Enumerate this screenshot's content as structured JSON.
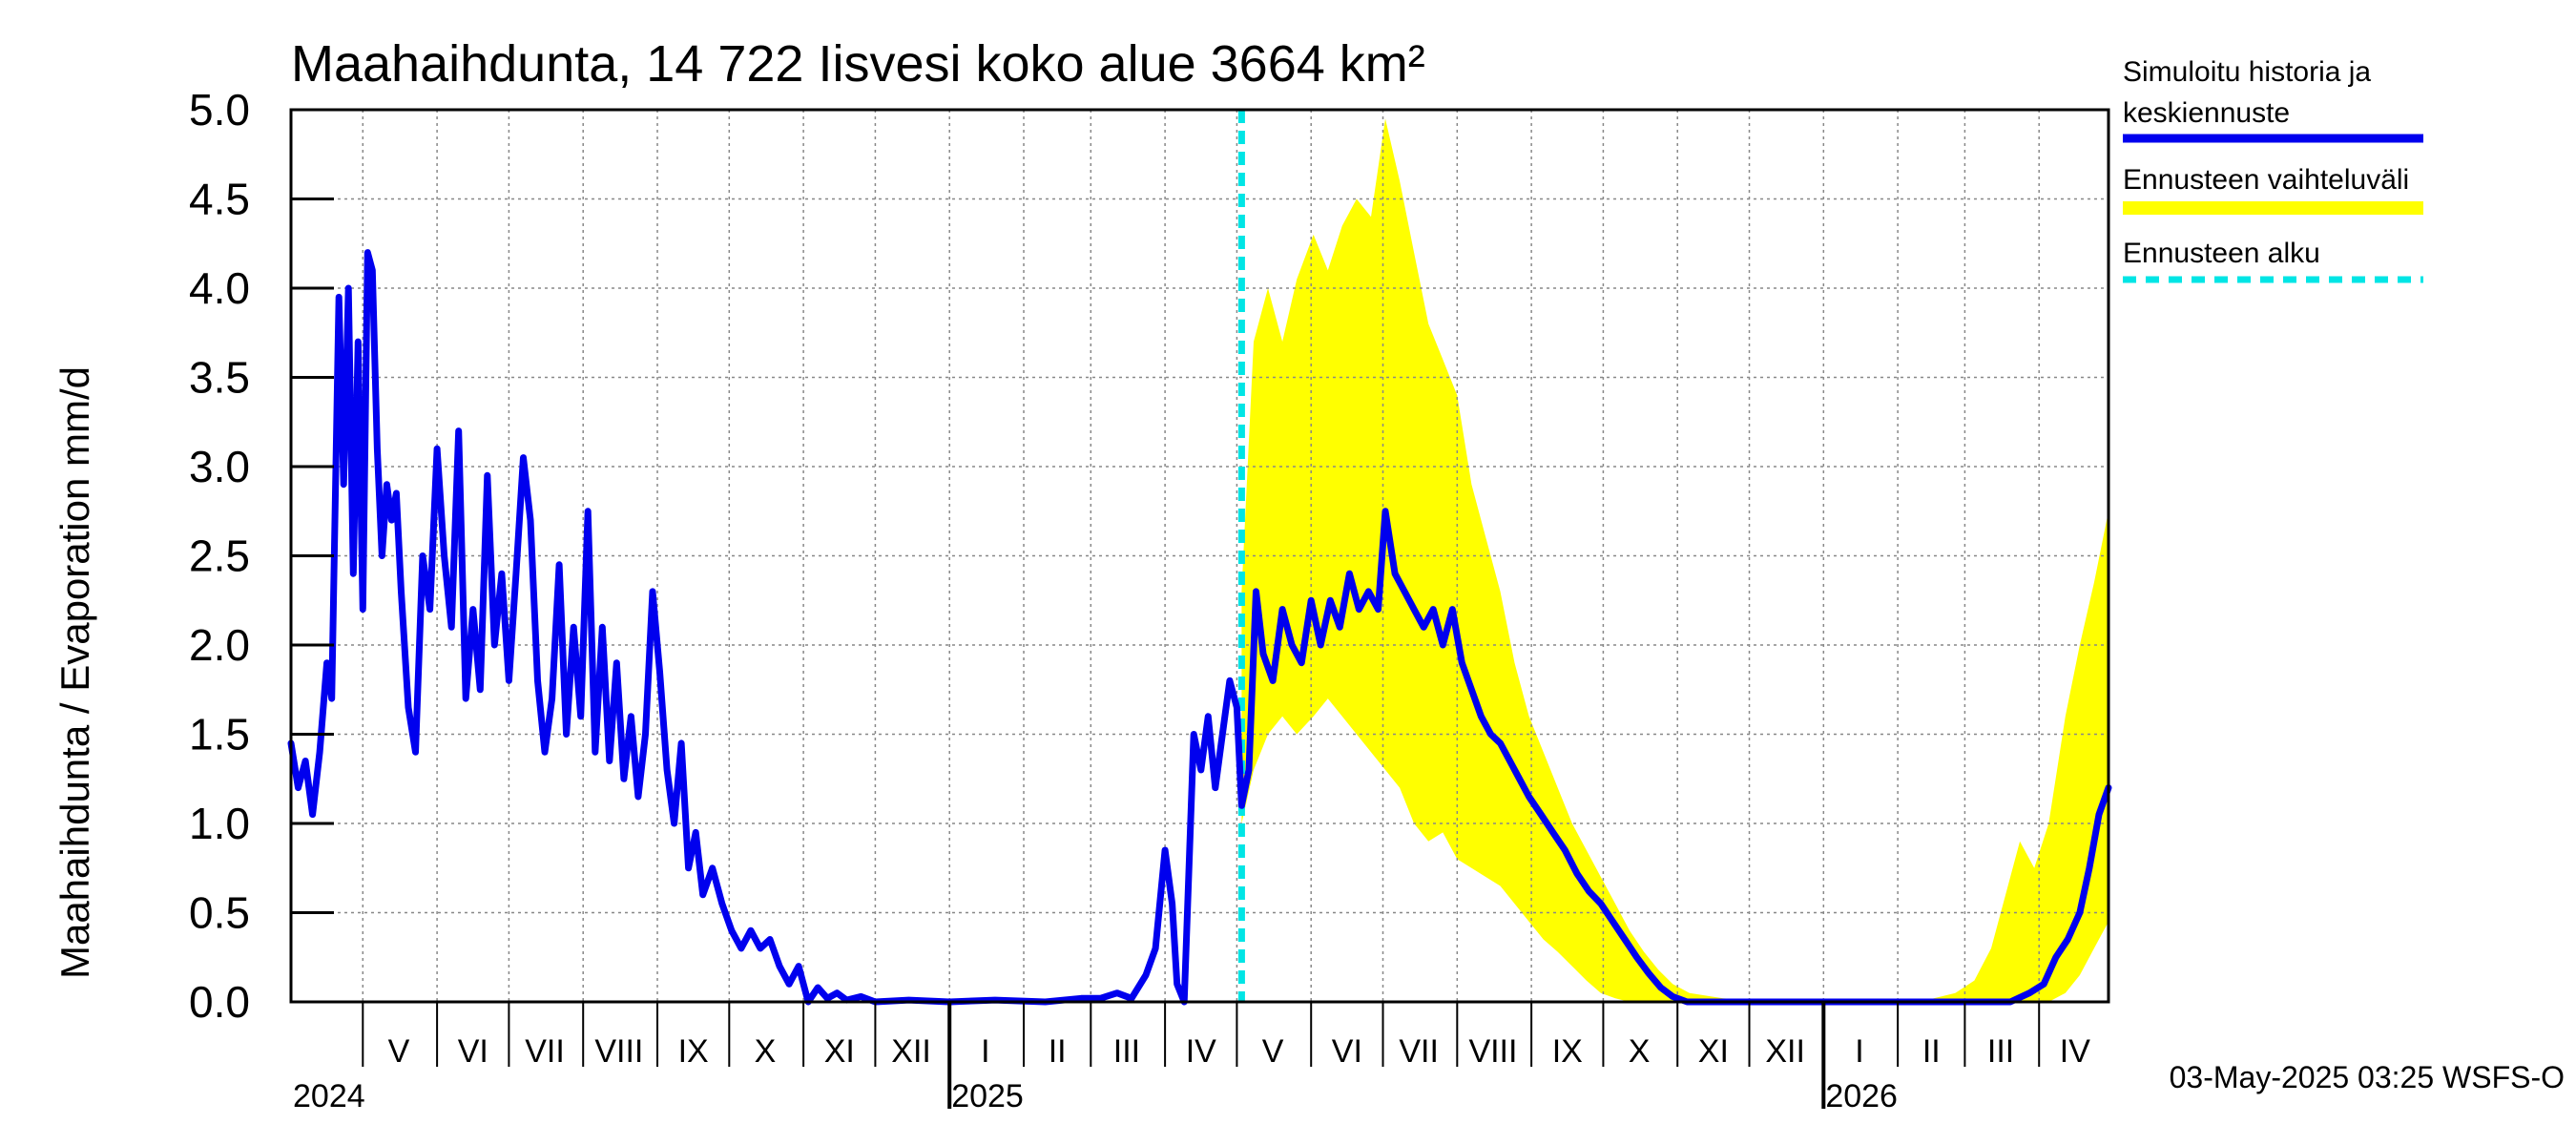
{
  "chart_data": {
    "type": "line",
    "title": "Maahaihdunta, 14 722 Iisvesi koko alue 3664 km²",
    "ylabel": "Maahaihdunta / Evaporation   mm/d",
    "ylim": [
      0,
      5
    ],
    "yticks": [
      "0.0",
      "0.5",
      "1.0",
      "1.5",
      "2.0",
      "2.5",
      "3.0",
      "3.5",
      "4.0",
      "4.5",
      "5.0"
    ],
    "x_start": "2024-04-01",
    "x_end": "2026-04-30",
    "forecast_start": "2025-05-03",
    "month_labels": [
      {
        "label": "V",
        "date": "2024-05-16"
      },
      {
        "label": "VI",
        "date": "2024-06-16"
      },
      {
        "label": "VII",
        "date": "2024-07-16"
      },
      {
        "label": "VIII",
        "date": "2024-08-16"
      },
      {
        "label": "IX",
        "date": "2024-09-16"
      },
      {
        "label": "X",
        "date": "2024-10-16"
      },
      {
        "label": "XI",
        "date": "2024-11-16"
      },
      {
        "label": "XII",
        "date": "2024-12-16"
      },
      {
        "label": "I",
        "date": "2025-01-16"
      },
      {
        "label": "II",
        "date": "2025-02-15"
      },
      {
        "label": "III",
        "date": "2025-03-16"
      },
      {
        "label": "IV",
        "date": "2025-04-16"
      },
      {
        "label": "V",
        "date": "2025-05-16"
      },
      {
        "label": "VI",
        "date": "2025-06-16"
      },
      {
        "label": "VII",
        "date": "2025-07-16"
      },
      {
        "label": "VIII",
        "date": "2025-08-16"
      },
      {
        "label": "IX",
        "date": "2025-09-16"
      },
      {
        "label": "X",
        "date": "2025-10-16"
      },
      {
        "label": "XI",
        "date": "2025-11-16"
      },
      {
        "label": "XII",
        "date": "2025-12-16"
      },
      {
        "label": "I",
        "date": "2026-01-16"
      },
      {
        "label": "II",
        "date": "2026-02-15"
      },
      {
        "label": "III",
        "date": "2026-03-16"
      },
      {
        "label": "IV",
        "date": "2026-04-16"
      }
    ],
    "month_boundaries": [
      "2024-05-01",
      "2024-06-01",
      "2024-07-01",
      "2024-08-01",
      "2024-09-01",
      "2024-10-01",
      "2024-11-01",
      "2024-12-01",
      "2025-01-01",
      "2025-02-01",
      "2025-03-01",
      "2025-04-01",
      "2025-05-01",
      "2025-06-01",
      "2025-07-01",
      "2025-08-01",
      "2025-09-01",
      "2025-10-01",
      "2025-11-01",
      "2025-12-01",
      "2026-01-01",
      "2026-02-01",
      "2026-03-01",
      "2026-04-01"
    ],
    "year_labels": [
      {
        "label": "2024",
        "date": "2024-04-01"
      },
      {
        "label": "2025",
        "date": "2025-01-01"
      },
      {
        "label": "2026",
        "date": "2026-01-01"
      }
    ],
    "series": [
      {
        "name": "Simuloitu historia ja keskiennuste",
        "color": "#0000ee",
        "points": [
          [
            "2024-04-01",
            1.45
          ],
          [
            "2024-04-04",
            1.2
          ],
          [
            "2024-04-07",
            1.35
          ],
          [
            "2024-04-10",
            1.05
          ],
          [
            "2024-04-13",
            1.4
          ],
          [
            "2024-04-16",
            1.9
          ],
          [
            "2024-04-18",
            1.7
          ],
          [
            "2024-04-21",
            3.95
          ],
          [
            "2024-04-23",
            2.9
          ],
          [
            "2024-04-25",
            4.0
          ],
          [
            "2024-04-27",
            2.4
          ],
          [
            "2024-04-29",
            3.7
          ],
          [
            "2024-05-01",
            2.2
          ],
          [
            "2024-05-03",
            4.2
          ],
          [
            "2024-05-05",
            4.1
          ],
          [
            "2024-05-07",
            3.1
          ],
          [
            "2024-05-09",
            2.5
          ],
          [
            "2024-05-11",
            2.9
          ],
          [
            "2024-05-13",
            2.7
          ],
          [
            "2024-05-15",
            2.85
          ],
          [
            "2024-05-17",
            2.3
          ],
          [
            "2024-05-20",
            1.65
          ],
          [
            "2024-05-23",
            1.4
          ],
          [
            "2024-05-26",
            2.5
          ],
          [
            "2024-05-29",
            2.2
          ],
          [
            "2024-06-01",
            3.1
          ],
          [
            "2024-06-04",
            2.5
          ],
          [
            "2024-06-07",
            2.1
          ],
          [
            "2024-06-10",
            3.2
          ],
          [
            "2024-06-13",
            1.7
          ],
          [
            "2024-06-16",
            2.2
          ],
          [
            "2024-06-19",
            1.75
          ],
          [
            "2024-06-22",
            2.95
          ],
          [
            "2024-06-25",
            2.0
          ],
          [
            "2024-06-28",
            2.4
          ],
          [
            "2024-07-01",
            1.8
          ],
          [
            "2024-07-04",
            2.4
          ],
          [
            "2024-07-07",
            3.05
          ],
          [
            "2024-07-10",
            2.7
          ],
          [
            "2024-07-13",
            1.8
          ],
          [
            "2024-07-16",
            1.4
          ],
          [
            "2024-07-19",
            1.7
          ],
          [
            "2024-07-22",
            2.45
          ],
          [
            "2024-07-25",
            1.5
          ],
          [
            "2024-07-28",
            2.1
          ],
          [
            "2024-07-31",
            1.6
          ],
          [
            "2024-08-03",
            2.75
          ],
          [
            "2024-08-06",
            1.4
          ],
          [
            "2024-08-09",
            2.1
          ],
          [
            "2024-08-12",
            1.35
          ],
          [
            "2024-08-15",
            1.9
          ],
          [
            "2024-08-18",
            1.25
          ],
          [
            "2024-08-21",
            1.6
          ],
          [
            "2024-08-24",
            1.15
          ],
          [
            "2024-08-27",
            1.5
          ],
          [
            "2024-08-30",
            2.3
          ],
          [
            "2024-09-02",
            1.85
          ],
          [
            "2024-09-05",
            1.3
          ],
          [
            "2024-09-08",
            1.0
          ],
          [
            "2024-09-11",
            1.45
          ],
          [
            "2024-09-14",
            0.75
          ],
          [
            "2024-09-17",
            0.95
          ],
          [
            "2024-09-20",
            0.6
          ],
          [
            "2024-09-24",
            0.75
          ],
          [
            "2024-09-28",
            0.55
          ],
          [
            "2024-10-02",
            0.4
          ],
          [
            "2024-10-06",
            0.3
          ],
          [
            "2024-10-10",
            0.4
          ],
          [
            "2024-10-14",
            0.3
          ],
          [
            "2024-10-18",
            0.35
          ],
          [
            "2024-10-22",
            0.2
          ],
          [
            "2024-10-26",
            0.1
          ],
          [
            "2024-10-30",
            0.2
          ],
          [
            "2024-11-03",
            0.0
          ],
          [
            "2024-11-07",
            0.08
          ],
          [
            "2024-11-11",
            0.02
          ],
          [
            "2024-11-15",
            0.05
          ],
          [
            "2024-11-19",
            0.01
          ],
          [
            "2024-11-25",
            0.03
          ],
          [
            "2024-12-01",
            0.0
          ],
          [
            "2024-12-15",
            0.01
          ],
          [
            "2025-01-01",
            0.0
          ],
          [
            "2025-01-20",
            0.01
          ],
          [
            "2025-02-10",
            0.0
          ],
          [
            "2025-02-25",
            0.02
          ],
          [
            "2025-03-05",
            0.02
          ],
          [
            "2025-03-12",
            0.05
          ],
          [
            "2025-03-18",
            0.02
          ],
          [
            "2025-03-24",
            0.15
          ],
          [
            "2025-03-28",
            0.3
          ],
          [
            "2025-04-01",
            0.85
          ],
          [
            "2025-04-04",
            0.55
          ],
          [
            "2025-04-06",
            0.1
          ],
          [
            "2025-04-09",
            0.0
          ],
          [
            "2025-04-13",
            1.5
          ],
          [
            "2025-04-16",
            1.3
          ],
          [
            "2025-04-19",
            1.6
          ],
          [
            "2025-04-22",
            1.2
          ],
          [
            "2025-04-25",
            1.5
          ],
          [
            "2025-04-28",
            1.8
          ],
          [
            "2025-05-01",
            1.65
          ],
          [
            "2025-05-03",
            1.1
          ],
          [
            "2025-05-06",
            1.3
          ],
          [
            "2025-05-09",
            2.3
          ],
          [
            "2025-05-12",
            1.95
          ],
          [
            "2025-05-16",
            1.8
          ],
          [
            "2025-05-20",
            2.2
          ],
          [
            "2025-05-24",
            2.0
          ],
          [
            "2025-05-28",
            1.9
          ],
          [
            "2025-06-01",
            2.25
          ],
          [
            "2025-06-05",
            2.0
          ],
          [
            "2025-06-09",
            2.25
          ],
          [
            "2025-06-13",
            2.1
          ],
          [
            "2025-06-17",
            2.4
          ],
          [
            "2025-06-21",
            2.2
          ],
          [
            "2025-06-25",
            2.3
          ],
          [
            "2025-06-29",
            2.2
          ],
          [
            "2025-07-02",
            2.75
          ],
          [
            "2025-07-06",
            2.4
          ],
          [
            "2025-07-10",
            2.3
          ],
          [
            "2025-07-14",
            2.2
          ],
          [
            "2025-07-18",
            2.1
          ],
          [
            "2025-07-22",
            2.2
          ],
          [
            "2025-07-26",
            2.0
          ],
          [
            "2025-07-30",
            2.2
          ],
          [
            "2025-08-03",
            1.9
          ],
          [
            "2025-08-07",
            1.75
          ],
          [
            "2025-08-11",
            1.6
          ],
          [
            "2025-08-15",
            1.5
          ],
          [
            "2025-08-19",
            1.45
          ],
          [
            "2025-08-23",
            1.35
          ],
          [
            "2025-08-27",
            1.25
          ],
          [
            "2025-08-31",
            1.15
          ],
          [
            "2025-09-05",
            1.05
          ],
          [
            "2025-09-10",
            0.95
          ],
          [
            "2025-09-15",
            0.85
          ],
          [
            "2025-09-20",
            0.72
          ],
          [
            "2025-09-25",
            0.62
          ],
          [
            "2025-09-30",
            0.55
          ],
          [
            "2025-10-05",
            0.45
          ],
          [
            "2025-10-10",
            0.35
          ],
          [
            "2025-10-15",
            0.25
          ],
          [
            "2025-10-20",
            0.16
          ],
          [
            "2025-10-25",
            0.08
          ],
          [
            "2025-10-30",
            0.03
          ],
          [
            "2025-11-05",
            0.0
          ],
          [
            "2025-12-01",
            0.0
          ],
          [
            "2026-01-01",
            0.0
          ],
          [
            "2026-02-01",
            0.0
          ],
          [
            "2026-03-01",
            0.0
          ],
          [
            "2026-03-20",
            0.0
          ],
          [
            "2026-03-28",
            0.05
          ],
          [
            "2026-04-03",
            0.1
          ],
          [
            "2026-04-08",
            0.25
          ],
          [
            "2026-04-13",
            0.35
          ],
          [
            "2026-04-18",
            0.5
          ],
          [
            "2026-04-22",
            0.75
          ],
          [
            "2026-04-26",
            1.05
          ],
          [
            "2026-04-30",
            1.2
          ]
        ]
      },
      {
        "name": "Ennusteen vaihteluväli",
        "color": "#ffff00",
        "band": [
          [
            "2025-05-03",
            1.0,
            2.3
          ],
          [
            "2025-05-08",
            1.3,
            3.7
          ],
          [
            "2025-05-14",
            1.5,
            4.0
          ],
          [
            "2025-05-20",
            1.6,
            3.7
          ],
          [
            "2025-05-26",
            1.5,
            4.05
          ],
          [
            "2025-06-02",
            1.6,
            4.3
          ],
          [
            "2025-06-08",
            1.7,
            4.1
          ],
          [
            "2025-06-14",
            1.6,
            4.35
          ],
          [
            "2025-06-20",
            1.5,
            4.5
          ],
          [
            "2025-06-26",
            1.4,
            4.4
          ],
          [
            "2025-07-02",
            1.3,
            4.95
          ],
          [
            "2025-07-08",
            1.2,
            4.6
          ],
          [
            "2025-07-14",
            1.0,
            4.2
          ],
          [
            "2025-07-20",
            0.9,
            3.8
          ],
          [
            "2025-07-26",
            0.95,
            3.6
          ],
          [
            "2025-08-01",
            0.8,
            3.4
          ],
          [
            "2025-08-07",
            0.75,
            2.9
          ],
          [
            "2025-08-13",
            0.7,
            2.6
          ],
          [
            "2025-08-19",
            0.65,
            2.3
          ],
          [
            "2025-08-25",
            0.55,
            1.9
          ],
          [
            "2025-08-31",
            0.45,
            1.6
          ],
          [
            "2025-09-06",
            0.35,
            1.4
          ],
          [
            "2025-09-12",
            0.28,
            1.2
          ],
          [
            "2025-09-18",
            0.2,
            1.0
          ],
          [
            "2025-09-24",
            0.12,
            0.85
          ],
          [
            "2025-09-30",
            0.05,
            0.7
          ],
          [
            "2025-10-06",
            0.02,
            0.55
          ],
          [
            "2025-10-12",
            0.0,
            0.4
          ],
          [
            "2025-10-18",
            0.0,
            0.28
          ],
          [
            "2025-10-24",
            0.0,
            0.18
          ],
          [
            "2025-10-30",
            0.0,
            0.1
          ],
          [
            "2025-11-06",
            0.0,
            0.05
          ],
          [
            "2025-11-20",
            0.0,
            0.02
          ],
          [
            "2025-12-10",
            0.0,
            0.0
          ],
          [
            "2026-02-10",
            0.0,
            0.0
          ],
          [
            "2026-02-25",
            0.0,
            0.05
          ],
          [
            "2026-03-05",
            0.0,
            0.12
          ],
          [
            "2026-03-12",
            0.0,
            0.3
          ],
          [
            "2026-03-18",
            0.0,
            0.6
          ],
          [
            "2026-03-24",
            0.0,
            0.9
          ],
          [
            "2026-03-30",
            0.0,
            0.75
          ],
          [
            "2026-04-05",
            0.0,
            1.0
          ],
          [
            "2026-04-12",
            0.05,
            1.6
          ],
          [
            "2026-04-18",
            0.15,
            2.0
          ],
          [
            "2026-04-24",
            0.3,
            2.35
          ],
          [
            "2026-04-30",
            0.45,
            2.75
          ]
        ]
      }
    ],
    "legend": [
      {
        "label": "Simuloitu historia ja keskiennuste",
        "color": "#0000ee",
        "style": "solid"
      },
      {
        "label": "Ennusteen vaihteluväli",
        "color": "#ffff00",
        "style": "solid"
      },
      {
        "label": "Ennusteen alku",
        "color": "#00e5e5",
        "style": "dashed"
      }
    ],
    "legend_position": "right",
    "grid": true,
    "timestamp": "03-May-2025 03:25 WSFS-O"
  }
}
